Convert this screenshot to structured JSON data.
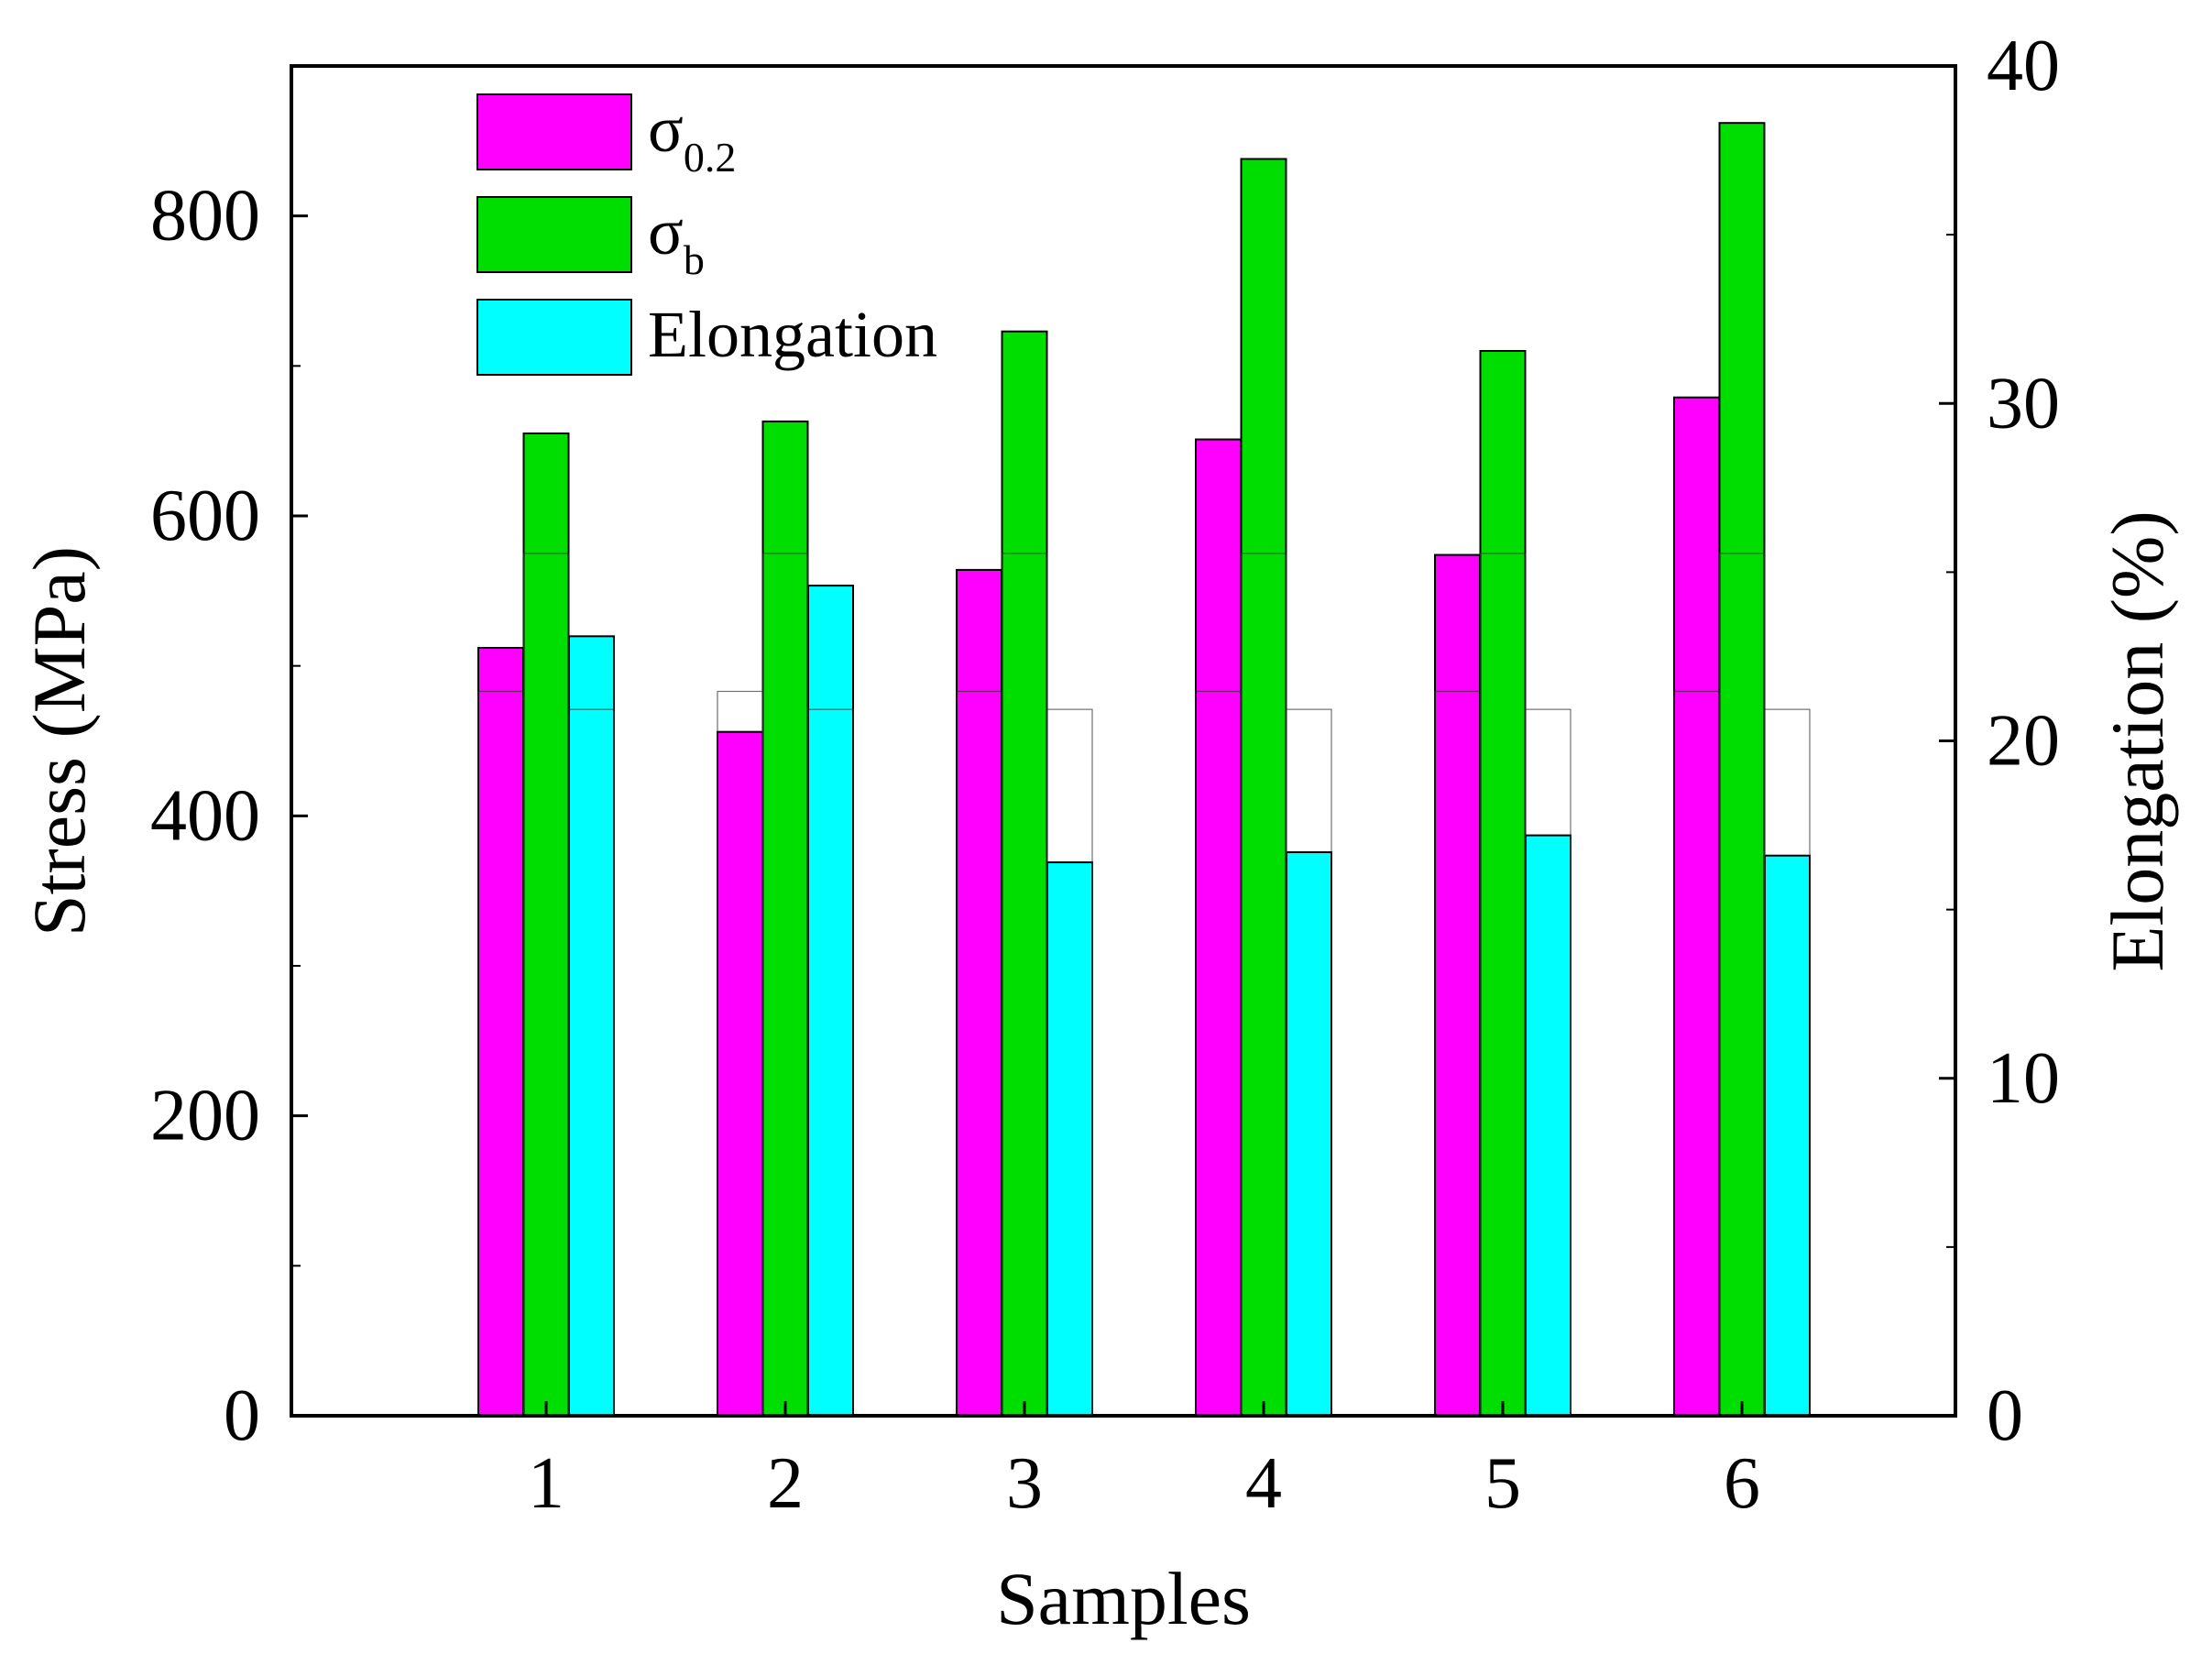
{
  "chart_data": {
    "type": "bar",
    "categories": [
      "1",
      "2",
      "3",
      "4",
      "5",
      "6"
    ],
    "series": [
      {
        "name": "σ0.2",
        "label_main": "σ",
        "label_sub": "0.2",
        "axis": "left",
        "color": "#ff00ff",
        "values": [
          512,
          456,
          564,
          651,
          574,
          679
        ]
      },
      {
        "name": "σb",
        "label_main": "σ",
        "label_sub": "b",
        "axis": "left",
        "color": "#00dd00",
        "values": [
          655,
          663,
          723,
          838,
          710,
          862
        ]
      },
      {
        "name": "Elongation",
        "label_main": "Elongation",
        "label_sub": "",
        "axis": "right",
        "color": "#00ffff",
        "values": [
          23.1,
          24.6,
          16.4,
          16.7,
          17.2,
          16.6
        ]
      }
    ],
    "xlabel": "Samples",
    "ylabel": "Stress (MPa)",
    "y2label": "Elongation (%)",
    "ylim": [
      0,
      900
    ],
    "y2lim": [
      0,
      40
    ],
    "yticks": [
      0,
      200,
      400,
      600,
      800
    ],
    "y2ticks": [
      0,
      10,
      20,
      30,
      40
    ],
    "legend_position": "top-left",
    "grid": false
  }
}
